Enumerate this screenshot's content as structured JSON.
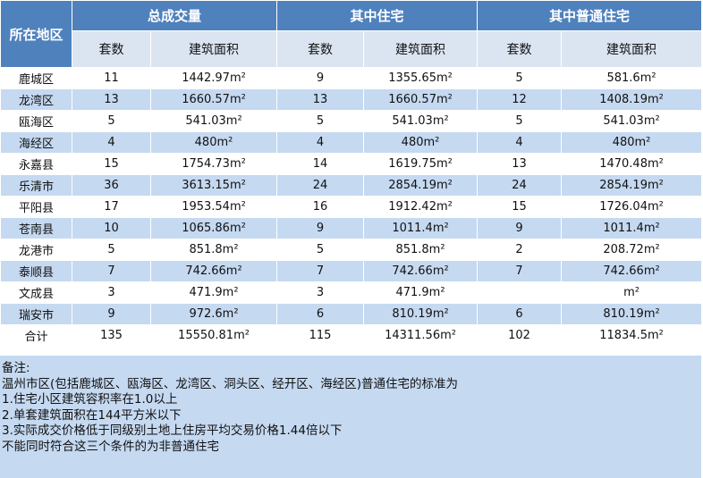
{
  "header": {
    "region": "所在地区",
    "groups": [
      "总成交量",
      "其中住宅",
      "其中普通住宅"
    ],
    "sub": [
      "套数",
      "建筑面积",
      "套数",
      "建筑面积",
      "套数",
      "建筑面积"
    ]
  },
  "rows": [
    [
      "鹿城区",
      "11",
      "1442.97m²",
      "9",
      "1355.65m²",
      "5",
      "581.6m²"
    ],
    [
      "龙湾区",
      "13",
      "1660.57m²",
      "13",
      "1660.57m²",
      "12",
      "1408.19m²"
    ],
    [
      "瓯海区",
      "5",
      "541.03m²",
      "5",
      "541.03m²",
      "5",
      "541.03m²"
    ],
    [
      "海经区",
      "4",
      "480m²",
      "4",
      "480m²",
      "4",
      "480m²"
    ],
    [
      "永嘉县",
      "15",
      "1754.73m²",
      "14",
      "1619.75m²",
      "13",
      "1470.48m²"
    ],
    [
      "乐清市",
      "36",
      "3613.15m²",
      "24",
      "2854.19m²",
      "24",
      "2854.19m²"
    ],
    [
      "平阳县",
      "17",
      "1953.54m²",
      "16",
      "1912.42m²",
      "15",
      "1726.04m²"
    ],
    [
      "苍南县",
      "10",
      "1065.86m²",
      "9",
      "1011.4m²",
      "9",
      "1011.4m²"
    ],
    [
      "龙港市",
      "5",
      "851.8m²",
      "5",
      "851.8m²",
      "2",
      "208.72m²"
    ],
    [
      "泰顺县",
      "7",
      "742.66m²",
      "7",
      "742.66m²",
      "7",
      "742.66m²"
    ],
    [
      "文成县",
      "3",
      "471.9m²",
      "3",
      "471.9m²",
      "",
      "m²"
    ],
    [
      "瑞安市",
      "9",
      "972.6m²",
      "6",
      "810.19m²",
      "6",
      "810.19m²"
    ]
  ],
  "total": [
    "合计",
    "135",
    "15550.81m²",
    "115",
    "14311.56m²",
    "102",
    "11834.5m²"
  ],
  "notes": [
    "备注:",
    "温州市区(包括鹿城区、瓯海区、龙湾区、洞头区、经开区、海经区)普通住宅的标准为",
    "1.住宅小区建筑容积率在1.0以上",
    "2.单套建筑面积在144平方米以下",
    "3.实际成交价格低于同级别土地上住房平均交易价格1.44倍以下",
    "不能同时符合这三个条件的为非普通住宅"
  ]
}
